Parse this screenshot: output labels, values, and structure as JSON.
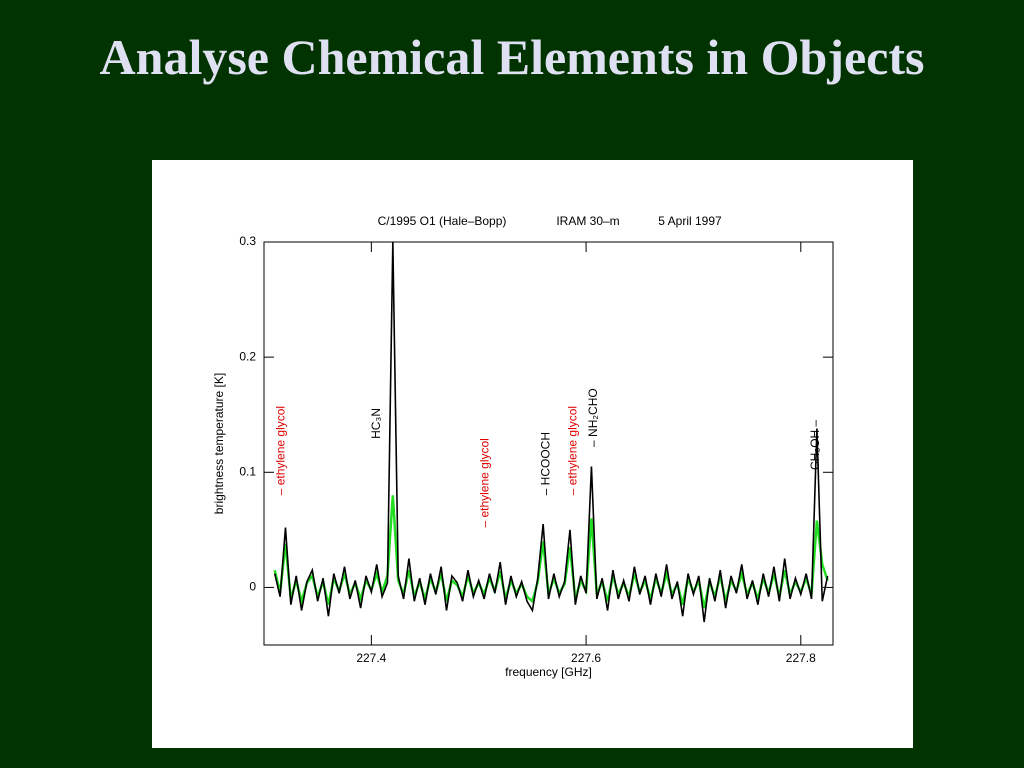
{
  "slide": {
    "title": "Analyse Chemical Elements in Objects"
  },
  "chart_data": {
    "type": "line",
    "subtitle": [
      "C/1995 O1 (Hale–Bopp)",
      "IRAM 30–m",
      "5 April 1997"
    ],
    "y_label": "brightness temperature [K]",
    "x_label": "frequency [GHz]",
    "xlim": [
      227.3,
      227.83
    ],
    "ylim": [
      -0.05,
      0.3
    ],
    "xticks": [
      227.4,
      227.6,
      227.8
    ],
    "yticks": [
      0,
      0.1,
      0.2,
      0.3
    ],
    "x": [
      227.31,
      227.315,
      227.32,
      227.325,
      227.33,
      227.335,
      227.34,
      227.345,
      227.35,
      227.355,
      227.36,
      227.365,
      227.37,
      227.375,
      227.38,
      227.385,
      227.39,
      227.395,
      227.4,
      227.405,
      227.41,
      227.415,
      227.42,
      227.425,
      227.43,
      227.435,
      227.44,
      227.445,
      227.45,
      227.455,
      227.46,
      227.465,
      227.47,
      227.475,
      227.48,
      227.485,
      227.49,
      227.495,
      227.5,
      227.505,
      227.51,
      227.515,
      227.52,
      227.525,
      227.53,
      227.535,
      227.54,
      227.545,
      227.55,
      227.555,
      227.56,
      227.565,
      227.57,
      227.575,
      227.58,
      227.585,
      227.59,
      227.595,
      227.6,
      227.605,
      227.61,
      227.615,
      227.62,
      227.625,
      227.63,
      227.635,
      227.64,
      227.645,
      227.65,
      227.655,
      227.66,
      227.665,
      227.67,
      227.675,
      227.68,
      227.685,
      227.69,
      227.695,
      227.7,
      227.705,
      227.71,
      227.715,
      227.72,
      227.725,
      227.73,
      227.735,
      227.74,
      227.745,
      227.75,
      227.755,
      227.76,
      227.765,
      227.77,
      227.775,
      227.78,
      227.785,
      227.79,
      227.795,
      227.8,
      227.805,
      227.81,
      227.815,
      227.82,
      227.825
    ],
    "series": [
      {
        "color": "#22dd22",
        "values": [
          0.015,
          -0.005,
          0.038,
          -0.01,
          0.006,
          -0.012,
          0.004,
          0.01,
          -0.008,
          0.005,
          -0.015,
          0.008,
          -0.003,
          0.012,
          -0.006,
          0.004,
          -0.01,
          0.006,
          -0.002,
          0.012,
          -0.004,
          0.01,
          0.08,
          0.006,
          -0.006,
          0.015,
          -0.008,
          0.005,
          -0.01,
          0.008,
          -0.004,
          0.012,
          -0.012,
          0.006,
          0.002,
          -0.008,
          0.01,
          -0.005,
          0.004,
          -0.006,
          0.008,
          -0.003,
          0.014,
          -0.01,
          0.006,
          -0.005,
          0.003,
          -0.008,
          -0.012,
          0.005,
          0.04,
          -0.006,
          0.008,
          -0.005,
          0.003,
          0.035,
          -0.01,
          0.006,
          -0.003,
          0.06,
          -0.006,
          0.005,
          -0.012,
          0.01,
          -0.006,
          0.004,
          -0.008,
          0.012,
          -0.004,
          0.006,
          -0.01,
          0.008,
          -0.005,
          0.012,
          -0.006,
          0.003,
          -0.015,
          0.008,
          -0.004,
          0.006,
          -0.018,
          0.005,
          -0.008,
          0.01,
          -0.012,
          0.006,
          -0.003,
          0.012,
          -0.006,
          0.004,
          -0.01,
          0.008,
          -0.005,
          0.012,
          -0.008,
          0.015,
          -0.006,
          0.005,
          -0.004,
          0.008,
          -0.006,
          0.058,
          0.02,
          0.006
        ]
      },
      {
        "color": "#000000",
        "values": [
          0.012,
          -0.008,
          0.052,
          -0.015,
          0.01,
          -0.02,
          0.005,
          0.015,
          -0.012,
          0.008,
          -0.025,
          0.012,
          -0.005,
          0.018,
          -0.01,
          0.006,
          -0.018,
          0.01,
          -0.004,
          0.02,
          -0.008,
          0.004,
          0.3,
          0.01,
          -0.01,
          0.025,
          -0.012,
          0.008,
          -0.015,
          0.012,
          -0.006,
          0.018,
          -0.02,
          0.01,
          0.004,
          -0.012,
          0.015,
          -0.008,
          0.006,
          -0.01,
          0.012,
          -0.005,
          0.022,
          -0.015,
          0.01,
          -0.008,
          0.005,
          -0.012,
          -0.02,
          0.008,
          0.055,
          -0.01,
          0.012,
          -0.008,
          0.005,
          0.05,
          -0.015,
          0.01,
          -0.005,
          0.105,
          -0.01,
          0.008,
          -0.02,
          0.015,
          -0.01,
          0.006,
          -0.012,
          0.018,
          -0.006,
          0.01,
          -0.015,
          0.012,
          -0.008,
          0.02,
          -0.01,
          0.005,
          -0.025,
          0.012,
          -0.006,
          0.01,
          -0.03,
          0.008,
          -0.012,
          0.015,
          -0.018,
          0.01,
          -0.005,
          0.02,
          -0.01,
          0.006,
          -0.015,
          0.012,
          -0.008,
          0.018,
          -0.012,
          0.025,
          -0.01,
          0.008,
          -0.006,
          0.012,
          -0.01,
          0.138,
          -0.012,
          0.01
        ]
      }
    ],
    "annotations": [
      {
        "text": "– ethylene glycol",
        "x": 227.316,
        "y": 0.08,
        "color": "#e00000"
      },
      {
        "text": "HC₃N",
        "x": 227.405,
        "y": 0.129,
        "color": "#000000"
      },
      {
        "text": "– ethylene glycol",
        "x": 227.506,
        "y": 0.052,
        "color": "#e00000"
      },
      {
        "text": "– HCOOCH",
        "x": 227.563,
        "y": 0.08,
        "color": "#000000"
      },
      {
        "text": "– ethylene glycol",
        "x": 227.588,
        "y": 0.08,
        "color": "#e00000"
      },
      {
        "text": "– NH₂CHO",
        "x": 227.607,
        "y": 0.122,
        "color": "#000000"
      },
      {
        "text": "CH₃OH –",
        "x": 227.814,
        "y": 0.102,
        "color": "#000000"
      }
    ]
  }
}
